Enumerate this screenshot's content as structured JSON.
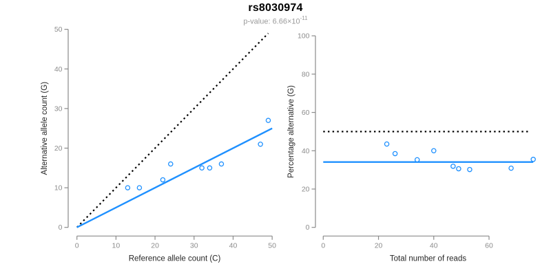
{
  "figure": {
    "title": "rs8030974",
    "p_value_text": "p-value: 6.66×10",
    "p_value_exponent": "-11"
  },
  "colors": {
    "accent_blue": "#1E90FF",
    "reference_black": "#000000",
    "axis_line": "#8a8a8a",
    "tick_label": "#8c8c8c",
    "axis_title": "#262626",
    "title": "#000000",
    "subtitle": "#9a9a9a",
    "background": "#ffffff",
    "marker_fill": "#ffffff"
  },
  "chart_data": [
    {
      "type": "scatter",
      "name": "allele-counts",
      "xlabel": "Reference allele count (C)",
      "ylabel": "Alternative allele count (G)",
      "xlim": [
        0,
        50
      ],
      "ylim": [
        0,
        50
      ],
      "xticks": [
        0,
        10,
        20,
        30,
        40,
        50
      ],
      "yticks": [
        0,
        10,
        20,
        30,
        40,
        50
      ],
      "grid": false,
      "legend": false,
      "marker": {
        "shape": "open-circle",
        "color": "#1E90FF"
      },
      "points": [
        [
          13,
          10
        ],
        [
          16,
          10
        ],
        [
          22,
          12
        ],
        [
          24,
          16
        ],
        [
          32,
          15
        ],
        [
          34,
          15
        ],
        [
          37,
          16
        ],
        [
          47,
          21
        ],
        [
          49,
          27
        ]
      ],
      "lines": [
        {
          "name": "identity-line",
          "style": "dotted",
          "color": "#000000",
          "from": [
            0,
            0
          ],
          "to": [
            49,
            49
          ]
        },
        {
          "name": "fit-line",
          "style": "solid",
          "color": "#1E90FF",
          "from": [
            0,
            0
          ],
          "to": [
            50,
            25
          ]
        }
      ]
    },
    {
      "type": "scatter",
      "name": "percentage-vs-reads",
      "xlabel": "Total number of reads",
      "ylabel": "Percentage alternative (G)",
      "xlim": [
        0,
        76
      ],
      "ylim": [
        0,
        100
      ],
      "xticks": [
        0,
        20,
        40,
        60
      ],
      "yticks": [
        0,
        20,
        40,
        60,
        80,
        100
      ],
      "grid": false,
      "legend": false,
      "marker": {
        "shape": "open-circle",
        "color": "#1E90FF"
      },
      "points": [
        [
          23,
          43.5
        ],
        [
          26,
          38.5
        ],
        [
          34,
          35.3
        ],
        [
          40,
          40
        ],
        [
          47,
          31.9
        ],
        [
          49,
          30.6
        ],
        [
          53,
          30.2
        ],
        [
          68,
          30.9
        ],
        [
          76,
          35.5
        ]
      ],
      "lines": [
        {
          "name": "fifty-percent-line",
          "style": "dotted",
          "color": "#000000",
          "from": [
            0,
            50
          ],
          "to": [
            74.5,
            50
          ]
        },
        {
          "name": "mean-percentage-line",
          "style": "solid",
          "color": "#1E90FF",
          "from": [
            0,
            34.1
          ],
          "to": [
            76,
            34.1
          ]
        }
      ]
    }
  ]
}
